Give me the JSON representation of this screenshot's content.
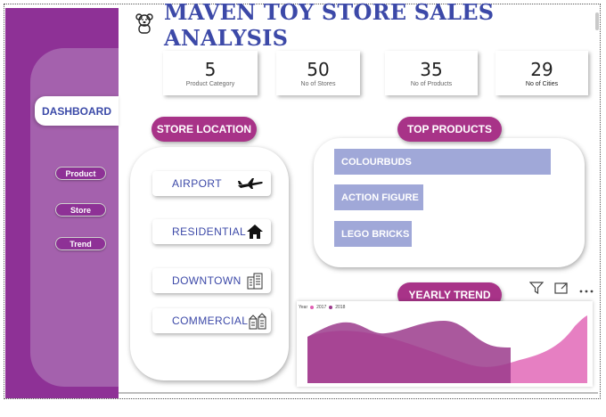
{
  "header": {
    "title": "MAVEN TOY STORE SALES ANALYSIS"
  },
  "sidebar": {
    "dashboard_label": "DASHBOARD",
    "items": [
      {
        "label": "Product"
      },
      {
        "label": "Store"
      },
      {
        "label": "Trend"
      }
    ],
    "colors": {
      "base": "#8e3196",
      "panel": "#a461ad"
    }
  },
  "kpis": [
    {
      "value": "5",
      "label": "Product Category"
    },
    {
      "value": "50",
      "label": "No of Stores"
    },
    {
      "value": "35",
      "label": "No of Products"
    },
    {
      "value": "29",
      "label": "No of Cities"
    }
  ],
  "store_location": {
    "heading": "STORE LOCATION",
    "items": [
      {
        "label": "AIRPORT",
        "icon": "airplane-icon"
      },
      {
        "label": "RESIDENTIAL",
        "icon": "house-icon"
      },
      {
        "label": "DOWNTOWN",
        "icon": "building-icon"
      },
      {
        "label": "COMMERCIAL",
        "icon": "shops-icon"
      }
    ]
  },
  "top_products": {
    "heading": "TOP PRODUCTS",
    "items": [
      {
        "label": "COLOURBUDS",
        "value": 1.0
      },
      {
        "label": "ACTION FIGURE",
        "value": 0.41
      },
      {
        "label": "LEGO BRICKS",
        "value": 0.36
      }
    ],
    "bar_color": "#a0a8d8"
  },
  "yearly_trend": {
    "heading": "YEARLY TREND",
    "legend_title": "Year",
    "series": [
      {
        "name": "2017",
        "color": "#e05fb3"
      },
      {
        "name": "2018",
        "color": "#9b3b8c"
      }
    ],
    "toolbar": [
      "filter-icon",
      "expand-icon",
      "more-options-icon"
    ]
  },
  "accent": "#a83388",
  "title_color": "#3c49a8"
}
